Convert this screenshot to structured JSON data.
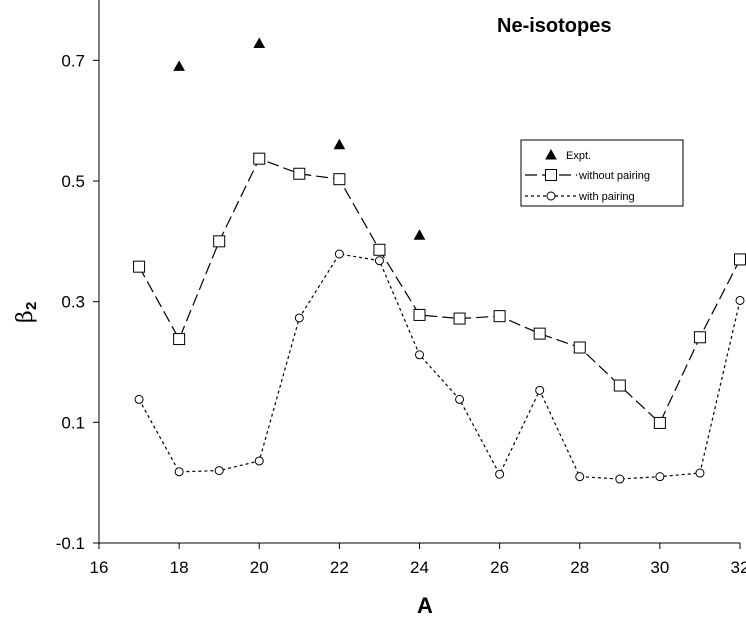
{
  "chart_data": {
    "type": "scatter",
    "title": "Ne-isotopes",
    "xlabel": "A",
    "ylabel_main": "β",
    "ylabel_sub": "2",
    "xlim": [
      16,
      32
    ],
    "ylim": [
      -0.1,
      0.8
    ],
    "xticks": [
      16,
      18,
      20,
      22,
      24,
      26,
      28,
      30,
      32
    ],
    "yticks": [
      -0.1,
      0.1,
      0.3,
      0.5,
      0.7
    ],
    "ytick_labels": [
      "-0.1",
      "0.1",
      "0.3",
      "0.5",
      "0.7"
    ],
    "grid": false,
    "legend_position": "top-right",
    "series": [
      {
        "name": "Expt.",
        "marker": "filled-triangle",
        "line": "none",
        "x": [
          18,
          20,
          22,
          24
        ],
        "y": [
          0.69,
          0.728,
          0.56,
          0.41
        ]
      },
      {
        "name": "without  pairing",
        "marker": "open-square",
        "line": "dashed",
        "x": [
          17,
          18,
          19,
          20,
          21,
          22,
          23,
          24,
          25,
          26,
          27,
          28,
          29,
          30,
          31,
          32
        ],
        "y": [
          0.358,
          0.238,
          0.4,
          0.537,
          0.512,
          0.503,
          0.386,
          0.278,
          0.272,
          0.276,
          0.247,
          0.224,
          0.161,
          0.099,
          0.241,
          0.37
        ]
      },
      {
        "name": "with pairing",
        "marker": "open-circle",
        "line": "dotted",
        "x": [
          17,
          18,
          19,
          20,
          21,
          22,
          23,
          24,
          25,
          26,
          27,
          28,
          29,
          30,
          31,
          32
        ],
        "y": [
          0.138,
          0.018,
          0.02,
          0.036,
          0.273,
          0.379,
          0.368,
          0.212,
          0.138,
          0.014,
          0.153,
          0.01,
          0.006,
          0.01,
          0.016,
          0.302
        ]
      }
    ]
  },
  "colors": {
    "axis": "#000000",
    "series": "#000000",
    "background": "#ffffff"
  }
}
